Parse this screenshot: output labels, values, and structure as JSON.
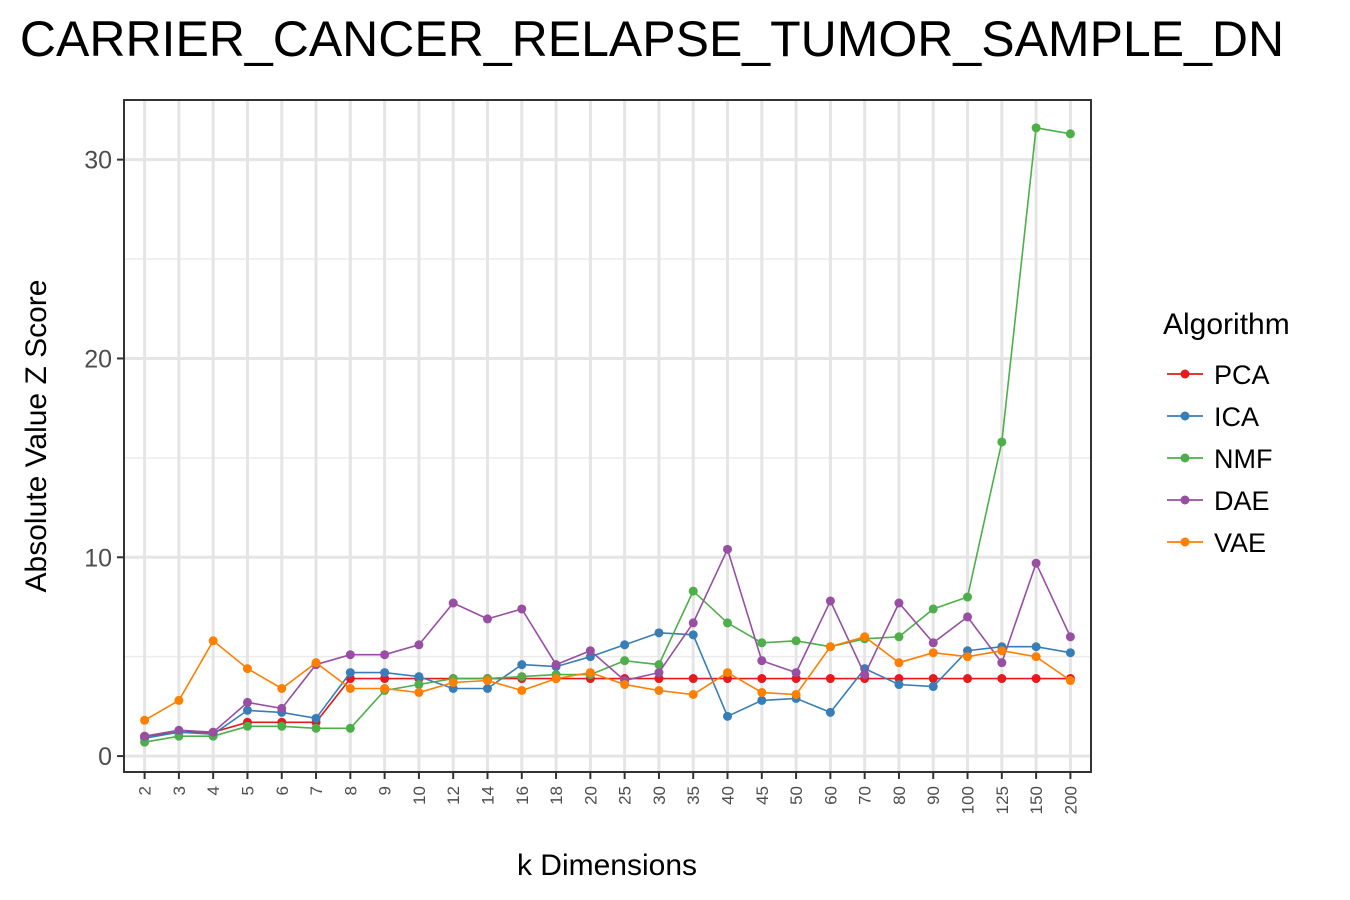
{
  "chart_data": {
    "type": "line",
    "title": "CARRIER_CANCER_RELAPSE_TUMOR_SAMPLE_DN",
    "xlabel": "k Dimensions",
    "ylabel": "Absolute Value Z Score",
    "x_categories": [
      "2",
      "3",
      "4",
      "5",
      "6",
      "7",
      "8",
      "9",
      "10",
      "12",
      "14",
      "16",
      "18",
      "20",
      "25",
      "30",
      "35",
      "40",
      "45",
      "50",
      "60",
      "70",
      "80",
      "90",
      "100",
      "125",
      "150",
      "200"
    ],
    "y_ticks": [
      0,
      10,
      20,
      30
    ],
    "ylim": [
      -0.8,
      33
    ],
    "grid": true,
    "legend": {
      "title": "Algorithm",
      "position": "right"
    },
    "series": [
      {
        "name": "PCA",
        "color": "#E41A1C",
        "values": [
          1.0,
          1.2,
          1.2,
          1.7,
          1.7,
          1.7,
          3.9,
          3.9,
          3.9,
          3.9,
          3.9,
          3.9,
          3.9,
          3.9,
          3.9,
          3.9,
          3.9,
          3.9,
          3.9,
          3.9,
          3.9,
          3.9,
          3.9,
          3.9,
          3.9,
          3.9,
          3.9,
          3.9
        ]
      },
      {
        "name": "ICA",
        "color": "#377EB8",
        "values": [
          0.9,
          1.2,
          1.1,
          2.3,
          2.2,
          1.9,
          4.2,
          4.2,
          4.0,
          3.4,
          3.4,
          4.6,
          4.5,
          5.0,
          5.6,
          6.2,
          6.1,
          2.0,
          2.8,
          2.9,
          2.2,
          4.4,
          3.6,
          3.5,
          5.3,
          5.5,
          5.5,
          5.2
        ]
      },
      {
        "name": "NMF",
        "color": "#4DAF4A",
        "values": [
          0.7,
          1.0,
          1.0,
          1.5,
          1.5,
          1.4,
          1.4,
          3.3,
          3.6,
          3.9,
          3.9,
          4.0,
          4.1,
          4.1,
          4.8,
          4.6,
          8.3,
          6.7,
          5.7,
          5.8,
          5.5,
          5.9,
          6.0,
          7.4,
          8.0,
          15.8,
          31.6,
          31.3
        ]
      },
      {
        "name": "DAE",
        "color": "#984EA3",
        "values": [
          1.0,
          1.3,
          1.2,
          2.7,
          2.4,
          4.6,
          5.1,
          5.1,
          5.6,
          7.7,
          6.9,
          7.4,
          4.6,
          5.3,
          3.8,
          4.2,
          6.7,
          10.4,
          4.8,
          4.2,
          7.8,
          4.1,
          7.7,
          5.7,
          7.0,
          4.7,
          9.7,
          6.0
        ]
      },
      {
        "name": "VAE",
        "color": "#FF7F00",
        "values": [
          1.8,
          2.8,
          5.8,
          4.4,
          3.4,
          4.7,
          3.4,
          3.4,
          3.2,
          3.7,
          3.8,
          3.3,
          3.9,
          4.2,
          3.6,
          3.3,
          3.1,
          4.2,
          3.2,
          3.1,
          5.5,
          6.0,
          4.7,
          5.2,
          5.0,
          5.3,
          5.0,
          3.8
        ]
      }
    ]
  }
}
